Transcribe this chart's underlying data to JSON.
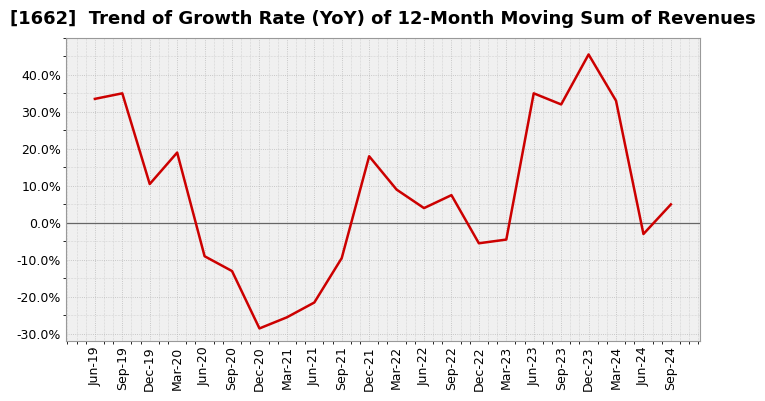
{
  "title": "[1662]  Trend of Growth Rate (YoY) of 12-Month Moving Sum of Revenues",
  "x_labels": [
    "Jun-19",
    "Sep-19",
    "Dec-19",
    "Mar-20",
    "Jun-20",
    "Sep-20",
    "Dec-20",
    "Mar-21",
    "Jun-21",
    "Sep-21",
    "Dec-21",
    "Mar-22",
    "Jun-22",
    "Sep-22",
    "Dec-22",
    "Mar-23",
    "Jun-23",
    "Sep-23",
    "Dec-23",
    "Mar-24",
    "Jun-24",
    "Sep-24"
  ],
  "values": [
    33.5,
    35.0,
    10.5,
    19.0,
    -9.0,
    -13.0,
    -28.5,
    -25.5,
    -21.5,
    -9.5,
    18.0,
    9.0,
    4.0,
    7.5,
    -5.5,
    -4.5,
    35.0,
    32.0,
    45.5,
    33.0,
    -3.0,
    5.0
  ],
  "line_color": "#cc0000",
  "line_width": 1.8,
  "background_color": "#ffffff",
  "plot_bg_color": "#f0f0f0",
  "grid_color": "#bbbbbb",
  "ylim_min": -32,
  "ylim_max": 50,
  "yticks": [
    -30,
    -20,
    -10,
    0,
    10,
    20,
    30,
    40
  ],
  "title_fontsize": 13,
  "axis_fontsize": 9,
  "zero_line_color": "#666666",
  "border_color": "#999999"
}
